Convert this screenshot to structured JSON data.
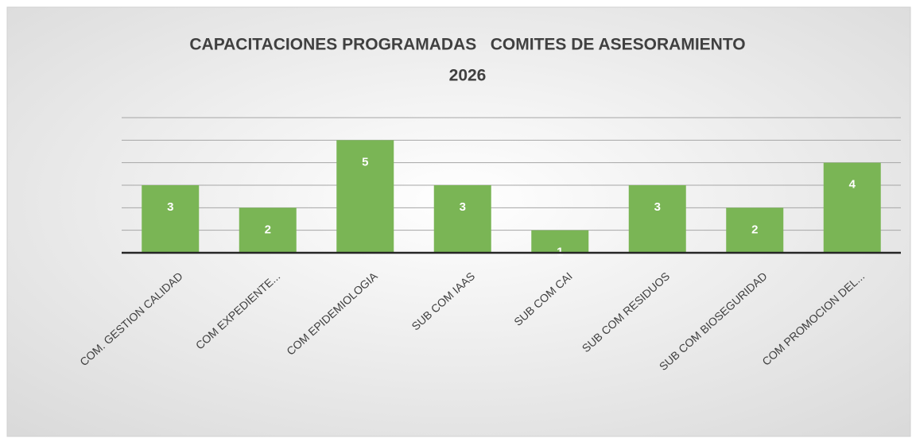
{
  "chart_data": {
    "type": "bar",
    "title": [
      "CAPACITACIONES PROGRAMADAS   COMITES DE ASESORAMIENTO",
      "2026"
    ],
    "categories": [
      "COM. GESTION CALIDAD",
      "COM EXPEDIENTE...",
      "COM EPIDEMIOLOGIA",
      "SUB COM IAAS",
      "SUB COM CAI",
      "SUB COM RESIDUOS",
      "SUB COM BIOSEGURIDAD",
      "COM PROMOCION DEL..."
    ],
    "values": [
      3,
      2,
      5,
      3,
      1,
      3,
      2,
      4
    ],
    "color": "#7ab555",
    "ylim": [
      0,
      6
    ],
    "yticks": [
      0,
      1,
      2,
      3,
      4,
      5,
      6
    ],
    "grid": true
  }
}
